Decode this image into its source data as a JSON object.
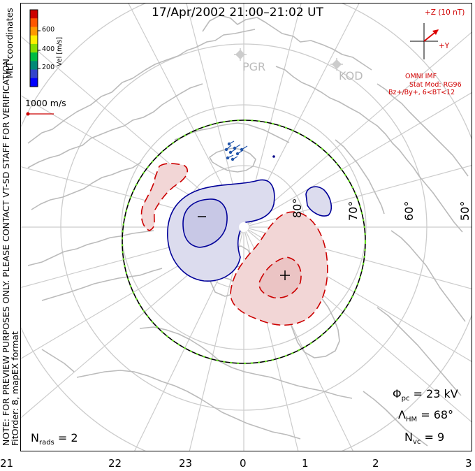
{
  "header": {
    "title": "17/Apr/2002 21:00–21:02 UT"
  },
  "side_note": {
    "line1": "NOTE: FOR PREVIEW PURPOSES ONLY. PLEASE CONTACT VT-SD STAFF FOR VERIFICATION.",
    "line2": "FitOrder: 8, mapEX format",
    "coords": "MLT coordinates"
  },
  "colorbar": {
    "label": "Vel [m/s]",
    "ticks": [
      "600",
      "400",
      "200"
    ],
    "colors": [
      "#cc0000",
      "#ff5500",
      "#ff9900",
      "#ffee00",
      "#88dd00",
      "#00bb44",
      "#008877",
      "#3344cc",
      "#0000ff"
    ]
  },
  "scale": {
    "label": "1000 m/s"
  },
  "imf": {
    "z_label": "+Z (10 nT)",
    "y_label": "+Y",
    "source": "OMNI IMF",
    "stat_model": "Stat Mod: RG96",
    "bin": "Bz+/By+, 6<BT<12"
  },
  "stations": [
    {
      "name": "PGR",
      "icon": "diamond-station-icon"
    },
    {
      "name": "KOD",
      "icon": "diamond-station-icon"
    }
  ],
  "latitudes": [
    "80°",
    "70°",
    "60°",
    "50°"
  ],
  "extrema": {
    "min": "−",
    "max": "+"
  },
  "stats": {
    "phi_pc": {
      "sym": "Φ",
      "sub": "pc",
      "value": "= 23 kV"
    },
    "lambda_hm": {
      "sym": "Λ",
      "sub": "HM",
      "value": "= 68°"
    },
    "n_vc": {
      "sym": "N",
      "sub": "vc",
      "value": "= 9"
    },
    "n_rads": {
      "sym": "N",
      "sub": "rads",
      "value": "= 2"
    }
  },
  "mlt_labels": [
    "21",
    "22",
    "23",
    "0",
    "1",
    "2",
    "3"
  ],
  "colors": {
    "map_outline": "#bbbbbb",
    "positive_cell": "#f2d6d6",
    "negative_cell": "#dcdcee",
    "positive_contour": "#cc0000",
    "negative_contour": "#000099",
    "hmb_line": "#000000",
    "hmb_dash": "#66dd22",
    "imf_vector": "#dd0000"
  }
}
